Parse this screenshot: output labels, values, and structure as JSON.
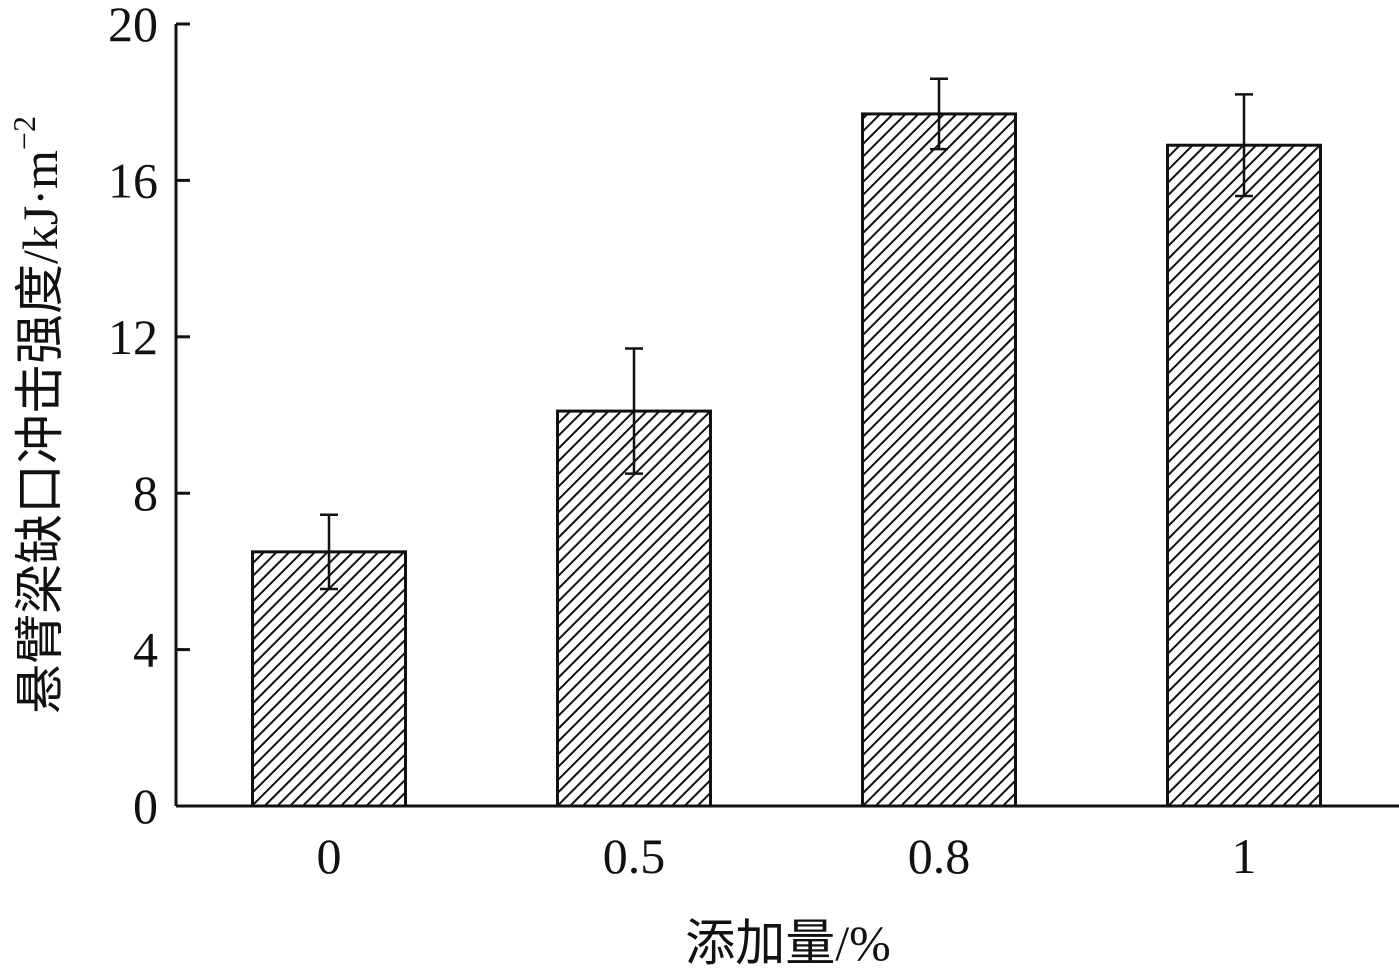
{
  "chart_data": {
    "type": "bar",
    "categories": [
      "0",
      "0.5",
      "0.8",
      "1"
    ],
    "values": [
      6.5,
      10.1,
      17.7,
      16.9
    ],
    "errors": [
      0.95,
      1.6,
      0.9,
      1.3
    ],
    "title": "",
    "xlabel": "添加量/%",
    "ylabel": "悬臂梁缺口冲击强度/kJ·m",
    "ylabel_superscript": "−2",
    "ylim": [
      0,
      20
    ],
    "yticks": [
      "0",
      "4",
      "8",
      "12",
      "16",
      "20"
    ],
    "ytick_values": [
      0,
      4,
      8,
      12,
      16,
      20
    ],
    "bar_fill": "diagonal-hatch",
    "grid": false,
    "legend": "none"
  }
}
